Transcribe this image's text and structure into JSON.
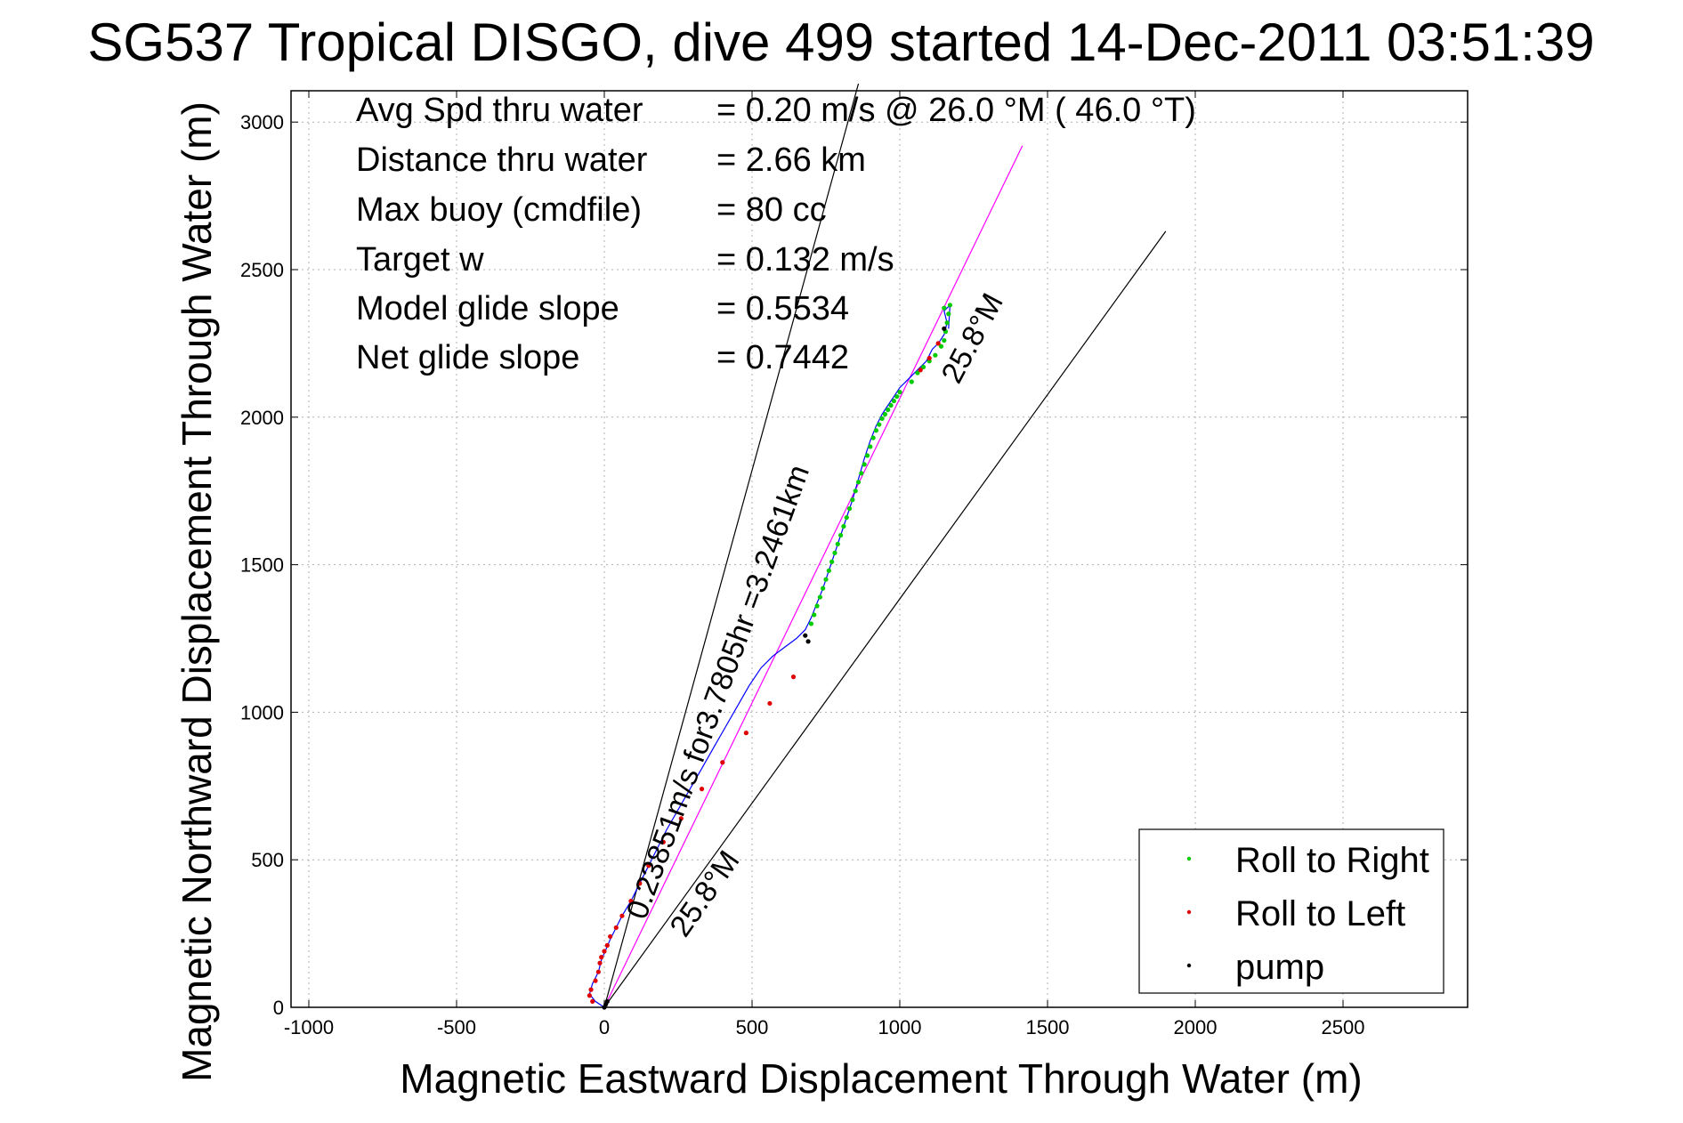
{
  "colors": {
    "roll_right": "#00cc00",
    "roll_left": "#e00000",
    "pump": "#000000",
    "track": "#0000ff",
    "course_line": "#ff00ff",
    "wedge_lines": "#000000"
  },
  "chart_data": {
    "type": "scatter",
    "title": "SG537 Tropical DISGO, dive 499 started 14-Dec-2011 03:51:39",
    "xlabel": "Magnetic Eastward Displacement Through Water (m)",
    "ylabel": "Magnetic Northward Displacement Through Water (m)",
    "xlim": [
      -1100,
      2900
    ],
    "ylim": [
      0,
      3130
    ],
    "xticks": [
      -1000,
      -500,
      0,
      500,
      1000,
      1500,
      2000,
      2500
    ],
    "xtick_labels": [
      "-1000",
      "-500",
      "0",
      "500",
      "1000",
      "1500",
      "2000",
      "2500"
    ],
    "yticks": [
      0,
      500,
      1000,
      1500,
      2000,
      2500,
      3000
    ],
    "ytick_labels": [
      "0",
      "500",
      "1000",
      "1500",
      "2000",
      "2500",
      "3000"
    ],
    "grid": true,
    "legend_position": "bottom-right",
    "info_lines": [
      {
        "label": "Avg Spd thru water",
        "value": "=  0.20 m/s @  26.0 °M ( 46.0 °T)"
      },
      {
        "label": "Distance thru water",
        "value": "=  2.66 km"
      },
      {
        "label": "Max buoy (cmdfile)",
        "value": "= 80 cc"
      },
      {
        "label": "Target w",
        "value": "= 0.132 m/s"
      },
      {
        "label": "Model glide slope",
        "value": "= 0.5534"
      },
      {
        "label": "Net glide slope",
        "value": "= 0.7442"
      }
    ],
    "annotations": {
      "course_text": "0.23851m/s for3.7805hr =3.2461km",
      "angle_text_top": "25.8°M",
      "angle_text_bottom": "25.8°M"
    },
    "reference_lines": [
      {
        "name": "wedge-left",
        "x": [
          0,
          860
        ],
        "y": [
          0,
          3130
        ]
      },
      {
        "name": "wedge-right",
        "x": [
          0,
          1900
        ],
        "y": [
          0,
          2630
        ]
      },
      {
        "name": "course-line",
        "x": [
          0,
          1415
        ],
        "y": [
          0,
          2920
        ]
      }
    ],
    "track": {
      "x": [
        0,
        -30,
        -50,
        -40,
        -20,
        -10,
        5,
        20,
        40,
        60,
        90,
        120,
        150,
        180,
        210,
        250,
        290,
        330,
        370,
        410,
        450,
        490,
        530,
        570,
        610,
        650,
        680,
        700,
        720,
        740,
        760,
        780,
        800,
        820,
        840,
        860,
        880,
        900,
        920,
        940,
        960,
        980,
        1000,
        1030,
        1060,
        1090,
        1110,
        1130,
        1150,
        1160,
        1150,
        1170,
        1165
      ],
      "y": [
        0,
        20,
        45,
        80,
        120,
        160,
        195,
        230,
        270,
        310,
        360,
        420,
        480,
        540,
        600,
        670,
        740,
        810,
        880,
        950,
        1020,
        1090,
        1150,
        1190,
        1220,
        1250,
        1280,
        1320,
        1370,
        1420,
        1480,
        1540,
        1600,
        1660,
        1720,
        1790,
        1860,
        1920,
        1970,
        2010,
        2040,
        2070,
        2100,
        2130,
        2160,
        2190,
        2230,
        2250,
        2280,
        2320,
        2360,
        2380,
        2300
      ]
    },
    "series": [
      {
        "name": "Roll to Right",
        "x": [
          700,
          710,
          720,
          730,
          740,
          750,
          760,
          770,
          780,
          790,
          800,
          810,
          820,
          830,
          840,
          850,
          860,
          870,
          880,
          890,
          900,
          910,
          920,
          930,
          940,
          950,
          960,
          970,
          980,
          990,
          1000,
          1040,
          1060,
          1080,
          1100,
          1120,
          1140,
          1150,
          1155,
          1160,
          1165,
          1150,
          1170
        ],
        "y": [
          1300,
          1330,
          1360,
          1390,
          1420,
          1450,
          1480,
          1510,
          1540,
          1570,
          1600,
          1630,
          1660,
          1690,
          1720,
          1750,
          1780,
          1810,
          1840,
          1870,
          1900,
          1930,
          1955,
          1975,
          1995,
          2010,
          2025,
          2040,
          2055,
          2070,
          2085,
          2120,
          2150,
          2170,
          2190,
          2210,
          2240,
          2260,
          2290,
          2320,
          2350,
          2370,
          2380
        ]
      },
      {
        "name": "Roll to Left",
        "x": [
          -40,
          -50,
          -45,
          -30,
          -20,
          -15,
          -10,
          0,
          10,
          20,
          40,
          60,
          90,
          120,
          150,
          200,
          260,
          330,
          400,
          480,
          560,
          640,
          1070,
          1100,
          1130
        ],
        "y": [
          20,
          40,
          60,
          90,
          120,
          150,
          170,
          190,
          210,
          240,
          270,
          310,
          360,
          420,
          480,
          560,
          640,
          740,
          830,
          930,
          1030,
          1120,
          2160,
          2200,
          2250
        ]
      },
      {
        "name": "pump",
        "x": [
          0,
          5,
          10,
          680,
          690,
          1150
        ],
        "y": [
          0,
          10,
          20,
          1260,
          1240,
          2300
        ]
      }
    ]
  }
}
